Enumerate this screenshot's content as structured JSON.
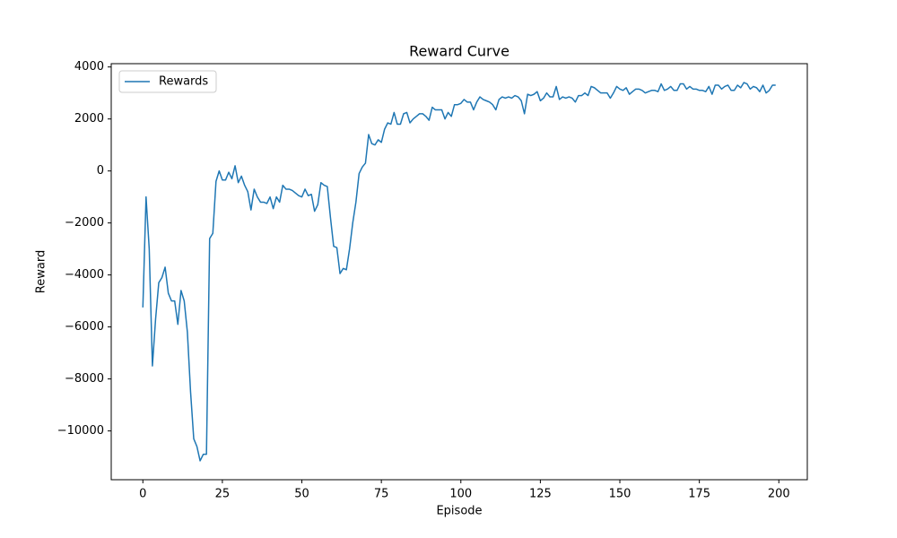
{
  "chart_data": {
    "type": "line",
    "title": "Reward Curve",
    "xlabel": "Episode",
    "ylabel": "Reward",
    "x": [
      0,
      1,
      2,
      3,
      4,
      5,
      6,
      7,
      8,
      9,
      10,
      11,
      12,
      13,
      14,
      15,
      16,
      17,
      18,
      19,
      20,
      21,
      22,
      23,
      24,
      25,
      26,
      27,
      28,
      29,
      30,
      31,
      32,
      33,
      34,
      35,
      36,
      37,
      38,
      39,
      40,
      41,
      42,
      43,
      44,
      45,
      46,
      47,
      48,
      49,
      50,
      51,
      52,
      53,
      54,
      55,
      56,
      57,
      58,
      59,
      60,
      61,
      62,
      63,
      64,
      65,
      66,
      67,
      68,
      69,
      70,
      71,
      72,
      73,
      74,
      75,
      76,
      77,
      78,
      79,
      80,
      81,
      82,
      83,
      84,
      85,
      86,
      87,
      88,
      89,
      90,
      91,
      92,
      93,
      94,
      95,
      96,
      97,
      98,
      99,
      100,
      101,
      102,
      103,
      104,
      105,
      106,
      107,
      108,
      109,
      110,
      111,
      112,
      113,
      114,
      115,
      116,
      117,
      118,
      119,
      120,
      121,
      122,
      123,
      124,
      125,
      126,
      127,
      128,
      129,
      130,
      131,
      132,
      133,
      134,
      135,
      136,
      137,
      138,
      139,
      140,
      141,
      142,
      143,
      144,
      145,
      146,
      147,
      148,
      149,
      150,
      151,
      152,
      153,
      154,
      155,
      156,
      157,
      158,
      159,
      160,
      161,
      162,
      163,
      164,
      165,
      166,
      167,
      168,
      169,
      170,
      171,
      172,
      173,
      174,
      175,
      176,
      177,
      178,
      179,
      180,
      181,
      182,
      183,
      184,
      185,
      186,
      187,
      188,
      189,
      190,
      191,
      192,
      193,
      194,
      195,
      196,
      197,
      198,
      199
    ],
    "series": [
      {
        "name": "Rewards",
        "color": "#1f77b4",
        "values": [
          -5250,
          -1000,
          -3000,
          -7500,
          -5700,
          -4300,
          -4100,
          -3700,
          -4700,
          -5000,
          -5000,
          -5900,
          -4600,
          -5000,
          -6200,
          -8500,
          -10300,
          -10600,
          -11150,
          -10900,
          -10900,
          -2600,
          -2400,
          -400,
          0,
          -350,
          -350,
          -50,
          -300,
          200,
          -450,
          -200,
          -550,
          -800,
          -1500,
          -700,
          -1000,
          -1200,
          -1200,
          -1250,
          -1000,
          -1450,
          -1000,
          -1200,
          -550,
          -700,
          -700,
          -750,
          -850,
          -950,
          -1000,
          -700,
          -950,
          -900,
          -1550,
          -1300,
          -450,
          -550,
          -600,
          -1800,
          -2900,
          -2950,
          -3950,
          -3750,
          -3800,
          -3000,
          -2000,
          -1200,
          -100,
          150,
          300,
          1400,
          1050,
          1000,
          1200,
          1100,
          1600,
          1850,
          1800,
          2250,
          1800,
          1800,
          2200,
          2250,
          1850,
          2000,
          2100,
          2200,
          2200,
          2100,
          1950,
          2450,
          2350,
          2350,
          2350,
          2000,
          2250,
          2100,
          2550,
          2550,
          2600,
          2750,
          2650,
          2650,
          2350,
          2650,
          2850,
          2750,
          2700,
          2650,
          2550,
          2350,
          2750,
          2850,
          2800,
          2850,
          2800,
          2900,
          2850,
          2700,
          2200,
          2950,
          2900,
          2950,
          3050,
          2700,
          2800,
          3000,
          2850,
          2850,
          3250,
          2750,
          2850,
          2800,
          2850,
          2800,
          2650,
          2900,
          2900,
          3000,
          2900,
          3250,
          3200,
          3100,
          3000,
          3000,
          3000,
          2800,
          3000,
          3250,
          3150,
          3100,
          3200,
          2950,
          3050,
          3150,
          3150,
          3100,
          3000,
          3050,
          3100,
          3100,
          3050,
          3350,
          3100,
          3150,
          3250,
          3100,
          3100,
          3350,
          3350,
          3150,
          3250,
          3150,
          3150,
          3100,
          3100,
          3050,
          3250,
          2950,
          3300,
          3300,
          3150,
          3250,
          3300,
          3100,
          3100,
          3300,
          3200,
          3400,
          3350,
          3150,
          3250,
          3200,
          3050,
          3300,
          3000,
          3100,
          3300,
          3300
        ]
      }
    ],
    "xlim": [
      -9.95,
      208.95
    ],
    "ylim": [
      -11877,
      4127
    ],
    "xticks": [
      0,
      25,
      50,
      75,
      100,
      125,
      150,
      175,
      200
    ],
    "yticks": [
      {
        "value": -10000,
        "label": "−10000"
      },
      {
        "value": -8000,
        "label": "−8000"
      },
      {
        "value": -6000,
        "label": "−6000"
      },
      {
        "value": -4000,
        "label": "−4000"
      },
      {
        "value": -2000,
        "label": "−2000"
      },
      0,
      2000,
      4000
    ],
    "grid": false,
    "legend": "upper left"
  }
}
